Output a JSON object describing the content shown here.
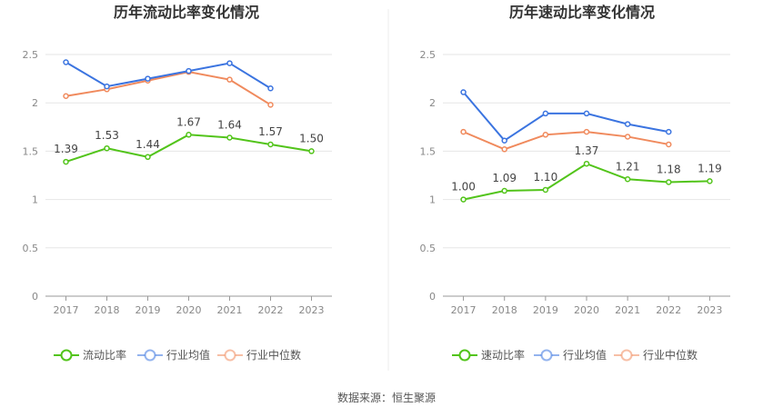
{
  "source": "数据来源：恒生聚源",
  "chart_data": [
    {
      "type": "line",
      "title": "历年流动比率变化情况",
      "categories": [
        "2017",
        "2018",
        "2019",
        "2020",
        "2021",
        "2022",
        "2023"
      ],
      "ylim": [
        0,
        2.5
      ],
      "yticks": [
        "0",
        "0.5",
        "1",
        "1.5",
        "2",
        "2.5"
      ],
      "grid": true,
      "legend_position": "bottom",
      "series": [
        {
          "name": "流动比率",
          "color": "#52c41a",
          "values": [
            1.39,
            1.53,
            1.44,
            1.67,
            1.64,
            1.57,
            1.5
          ],
          "labels": [
            "1.39",
            "1.53",
            "1.44",
            "1.67",
            "1.64",
            "1.57",
            "1.50"
          ]
        },
        {
          "name": "行业均值",
          "color": "#3b74e0",
          "values": [
            2.42,
            2.17,
            2.25,
            2.33,
            2.41,
            2.15,
            null
          ]
        },
        {
          "name": "行业中位数",
          "color": "#f08a5d",
          "values": [
            2.07,
            2.14,
            2.23,
            2.32,
            2.24,
            1.98,
            null
          ]
        }
      ]
    },
    {
      "type": "line",
      "title": "历年速动比率变化情况",
      "categories": [
        "2017",
        "2018",
        "2019",
        "2020",
        "2021",
        "2022",
        "2023"
      ],
      "ylim": [
        0,
        2.5
      ],
      "yticks": [
        "0",
        "0.5",
        "1",
        "1.5",
        "2",
        "2.5"
      ],
      "grid": true,
      "legend_position": "bottom",
      "series": [
        {
          "name": "速动比率",
          "color": "#52c41a",
          "values": [
            1.0,
            1.09,
            1.1,
            1.37,
            1.21,
            1.18,
            1.19
          ],
          "labels": [
            "1.00",
            "1.09",
            "1.10",
            "1.37",
            "1.21",
            "1.18",
            "1.19"
          ]
        },
        {
          "name": "行业均值",
          "color": "#3b74e0",
          "values": [
            2.11,
            1.61,
            1.89,
            1.89,
            1.78,
            1.7,
            null
          ]
        },
        {
          "name": "行业中位数",
          "color": "#f08a5d",
          "values": [
            1.7,
            1.52,
            1.67,
            1.7,
            1.65,
            1.57,
            null
          ]
        }
      ]
    }
  ]
}
